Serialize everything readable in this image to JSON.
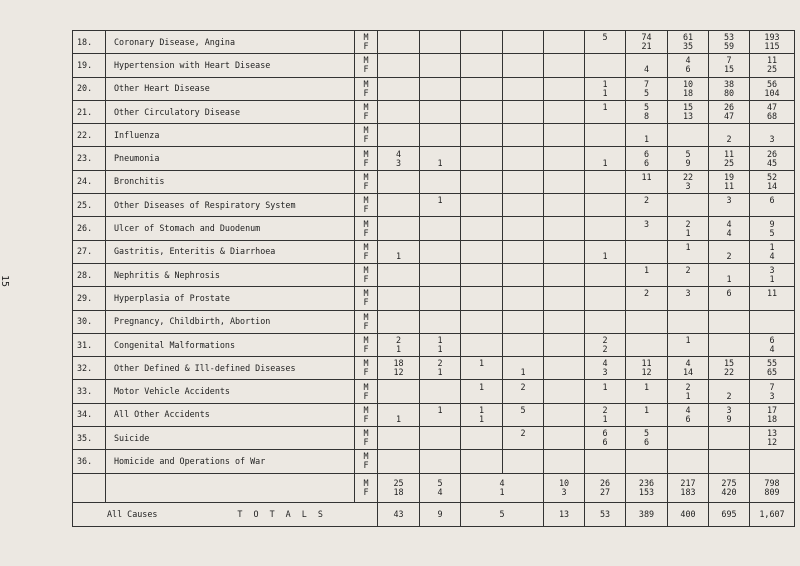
{
  "page_number": "15",
  "columns": 11,
  "rows": [
    {
      "no": "18.",
      "cause": "Coronary Disease, Angina",
      "m": [
        "",
        "",
        "",
        "",
        "",
        "5",
        "74",
        "61",
        "53",
        "193"
      ],
      "f": [
        "",
        "",
        "",
        "",
        "",
        "",
        "21",
        "35",
        "59",
        "115"
      ]
    },
    {
      "no": "19.",
      "cause": "Hypertension with Heart Disease",
      "m": [
        "",
        "",
        "",
        "",
        "",
        "",
        "",
        "4",
        "7",
        "11"
      ],
      "f": [
        "",
        "",
        "",
        "",
        "",
        "",
        "4",
        "6",
        "15",
        "25"
      ]
    },
    {
      "no": "20.",
      "cause": "Other Heart Disease",
      "m": [
        "",
        "",
        "",
        "",
        "",
        "1",
        "7",
        "10",
        "38",
        "56"
      ],
      "f": [
        "",
        "",
        "",
        "",
        "",
        "1",
        "5",
        "18",
        "80",
        "104"
      ]
    },
    {
      "no": "21.",
      "cause": "Other Circulatory Disease",
      "m": [
        "",
        "",
        "",
        "",
        "",
        "1",
        "5",
        "15",
        "26",
        "47"
      ],
      "f": [
        "",
        "",
        "",
        "",
        "",
        "",
        "8",
        "13",
        "47",
        "68"
      ]
    },
    {
      "no": "22.",
      "cause": "Influenza",
      "m": [
        "",
        "",
        "",
        "",
        "",
        "",
        "",
        "",
        "",
        ""
      ],
      "f": [
        "",
        "",
        "",
        "",
        "",
        "",
        "1",
        "",
        "2",
        "3"
      ]
    },
    {
      "no": "23.",
      "cause": "Pneumonia",
      "m": [
        "4",
        "",
        "",
        "",
        "",
        "",
        "6",
        "5",
        "11",
        "26"
      ],
      "f": [
        "3",
        "1",
        "",
        "",
        "",
        "1",
        "6",
        "9",
        "25",
        "45"
      ]
    },
    {
      "no": "24.",
      "cause": "Bronchitis",
      "m": [
        "",
        "",
        "",
        "",
        "",
        "",
        "11",
        "22",
        "19",
        "52"
      ],
      "f": [
        "",
        "",
        "",
        "",
        "",
        "",
        "",
        "3",
        "11",
        "14"
      ]
    },
    {
      "no": "25.",
      "cause": "Other Diseases of Respiratory System",
      "m": [
        "",
        "1",
        "",
        "",
        "",
        "",
        "2",
        "",
        "3",
        "6"
      ],
      "f": [
        "",
        "",
        "",
        "",
        "",
        "",
        "",
        "",
        "",
        ""
      ]
    },
    {
      "no": "26.",
      "cause": "Ulcer of Stomach and Duodenum",
      "m": [
        "",
        "",
        "",
        "",
        "",
        "",
        "3",
        "2",
        "4",
        "9"
      ],
      "f": [
        "",
        "",
        "",
        "",
        "",
        "",
        "",
        "1",
        "4",
        "5"
      ]
    },
    {
      "no": "27.",
      "cause": "Gastritis, Enteritis & Diarrhoea",
      "m": [
        "",
        "",
        "",
        "",
        "",
        "",
        "",
        "1",
        "",
        "1"
      ],
      "f": [
        "1",
        "",
        "",
        "",
        "",
        "1",
        "",
        "",
        "2",
        "4"
      ]
    },
    {
      "no": "28.",
      "cause": "Nephritis & Nephrosis",
      "m": [
        "",
        "",
        "",
        "",
        "",
        "",
        "1",
        "2",
        "",
        "3"
      ],
      "f": [
        "",
        "",
        "",
        "",
        "",
        "",
        "",
        "",
        "1",
        "1"
      ]
    },
    {
      "no": "29.",
      "cause": "Hyperplasia of Prostate",
      "m": [
        "",
        "",
        "",
        "",
        "",
        "",
        "2",
        "3",
        "6",
        "11"
      ],
      "f": [
        "",
        "",
        "",
        "",
        "",
        "",
        "",
        "",
        "",
        ""
      ]
    },
    {
      "no": "30.",
      "cause": "Pregnancy, Childbirth, Abortion",
      "m": [
        "",
        "",
        "",
        "",
        "",
        "",
        "",
        "",
        "",
        ""
      ],
      "f": [
        "",
        "",
        "",
        "",
        "",
        "",
        "",
        "",
        "",
        ""
      ]
    },
    {
      "no": "31.",
      "cause": "Congenital Malformations",
      "m": [
        "2",
        "1",
        "",
        "",
        "",
        "2",
        "",
        "1",
        "",
        "6"
      ],
      "f": [
        "1",
        "1",
        "",
        "",
        "",
        "2",
        "",
        "",
        "",
        "4"
      ]
    },
    {
      "no": "32.",
      "cause": "Other Defined & Ill-defined Diseases",
      "m": [
        "18",
        "2",
        "1",
        "",
        "",
        "4",
        "11",
        "4",
        "15",
        "55"
      ],
      "f": [
        "12",
        "1",
        "",
        "1",
        "",
        "3",
        "12",
        "14",
        "22",
        "65"
      ]
    },
    {
      "no": "33.",
      "cause": "Motor Vehicle Accidents",
      "m": [
        "",
        "",
        "1",
        "2",
        "",
        "1",
        "1",
        "2",
        "",
        "7"
      ],
      "f": [
        "",
        "",
        "",
        "",
        "",
        "",
        "",
        "1",
        "2",
        "3"
      ]
    },
    {
      "no": "34.",
      "cause": "All Other Accidents",
      "m": [
        "",
        "1",
        "1",
        "5",
        "",
        "2",
        "1",
        "4",
        "3",
        "17"
      ],
      "f": [
        "1",
        "",
        "1",
        "",
        "",
        "1",
        "",
        "6",
        "9",
        "18"
      ]
    },
    {
      "no": "35.",
      "cause": "Suicide",
      "m": [
        "",
        "",
        "",
        "2",
        "",
        "6",
        "5",
        "",
        "",
        "13"
      ],
      "f": [
        "",
        "",
        "",
        "",
        "",
        "6",
        "6",
        "",
        "",
        "12"
      ]
    },
    {
      "no": "36.",
      "cause": "Homicide and Operations of War",
      "m": [
        "",
        "",
        "",
        "",
        "",
        "",
        "",
        "",
        "",
        ""
      ],
      "f": [
        "",
        "",
        "",
        "",
        "",
        "",
        "",
        "",
        "",
        ""
      ]
    }
  ],
  "sex_m": "M",
  "sex_f": "F",
  "totals": {
    "m": [
      "25",
      "5",
      "4",
      "10",
      "26",
      "236",
      "217",
      "275",
      "798"
    ],
    "f": [
      "18",
      "4",
      "1",
      "3",
      "27",
      "153",
      "183",
      "420",
      "809"
    ],
    "all_causes_label": "All Causes",
    "totals_label": "T O T A L S",
    "all": [
      "43",
      "9",
      "5",
      "13",
      "53",
      "389",
      "400",
      "695",
      "1,607"
    ]
  }
}
